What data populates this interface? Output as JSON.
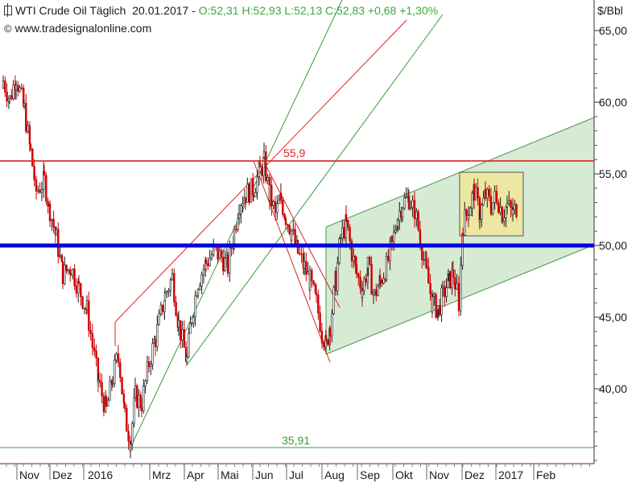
{
  "header": {
    "symbol_title": "WTI Crude Oil Täglich",
    "date": "20.01.2017",
    "quote": "O:52,31 H:52,93 L:52,13 C:52,83 +0,68 +1,30%",
    "copyright_symbol": "©",
    "website": "www.tradesignalonline.com"
  },
  "axis": {
    "unit": "$/Bbl",
    "ytick_labels": [
      "65,00",
      "60,00",
      "55,00",
      "50,00",
      "45,00",
      "40,00"
    ],
    "month_labels": [
      "Nov",
      "Dez",
      "2016",
      "Mrz",
      "Apr",
      "Mai",
      "Jun",
      "Jul",
      "Aug",
      "Sep",
      "Okt",
      "Nov",
      "Dez",
      "2017",
      "Feb"
    ]
  },
  "annotations": {
    "resistance_label": "55,9",
    "low_label": "35,91"
  },
  "colors": {
    "candle_up": "#1a1a1a",
    "candle_down": "#cc0000",
    "support_line": "#0000dd",
    "resistance_line": "#dd2222",
    "channel_fill": "#cde6c9",
    "channel_line": "#4a9a4a",
    "box_fill": "#f0e89a",
    "trend_green": "#3a9a3a",
    "trend_red": "#dd2222"
  },
  "chart_data": {
    "type": "candlestick",
    "title": "WTI Crude Oil Täglich",
    "ylabel": "$/Bbl",
    "ylim": [
      34.9,
      67.5
    ],
    "y_ticks": [
      40,
      45,
      50,
      55,
      60,
      65
    ],
    "grid": false,
    "horizontal_levels": [
      {
        "value": 55.9,
        "label": "55,9",
        "color": "red"
      },
      {
        "value": 50.0,
        "label": "",
        "color": "blue"
      },
      {
        "value": 35.91,
        "label": "35,91",
        "color": "green"
      }
    ],
    "x_categories": [
      "Nov",
      "Dez",
      "2016",
      "Mrz",
      "Apr",
      "Mai",
      "Jun",
      "Jul",
      "Aug",
      "Sep",
      "Okt",
      "Nov",
      "Dez",
      "2017",
      "Feb"
    ],
    "price_path": [
      {
        "x": "Okt 2015 end",
        "close": 61.5
      },
      {
        "x": "Nov 2015",
        "close": 58.5
      },
      {
        "x": "Dez 2015 start",
        "close": 54.0
      },
      {
        "x": "Dez 2015 mid",
        "close": 48.5
      },
      {
        "x": "2016 start",
        "close": 45.5
      },
      {
        "x": "Jan 2016 low",
        "close": 37.5
      },
      {
        "x": "Feb 2016 low",
        "close": 35.91
      },
      {
        "x": "Mrz 2016",
        "close": 47.5
      },
      {
        "x": "Apr 2016 low",
        "close": 42.0
      },
      {
        "x": "Mai 2016",
        "close": 49.0
      },
      {
        "x": "Jun 2016 high",
        "close": 55.9
      },
      {
        "x": "Jul 2016",
        "close": 49.0
      },
      {
        "x": "Aug 2016 low",
        "close": 42.8
      },
      {
        "x": "Aug 2016 high",
        "close": 51.5
      },
      {
        "x": "Sep 2016",
        "close": 46.5
      },
      {
        "x": "Okt 2016 high",
        "close": 53.5
      },
      {
        "x": "Nov 2016 low",
        "close": 45.5
      },
      {
        "x": "Dez 2016 high",
        "close": 54.8
      },
      {
        "x": "2017",
        "close": 52.83
      }
    ],
    "last_bar": {
      "open": 52.31,
      "high": 52.93,
      "low": 52.13,
      "close": 52.83,
      "change": 0.68,
      "change_pct": 1.3
    }
  }
}
